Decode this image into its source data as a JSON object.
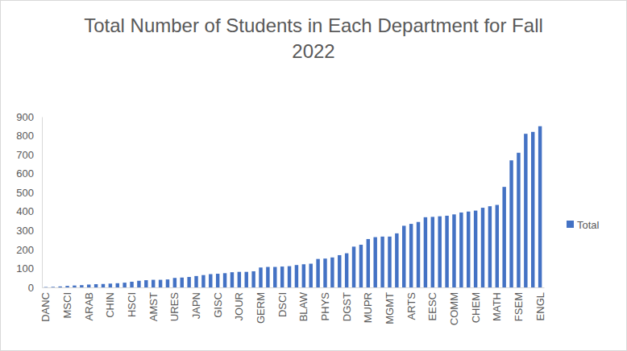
{
  "chart_data": {
    "type": "bar",
    "title": "Total Number of Students in Each Department for Fall 2022",
    "categories": [
      "DANC",
      null,
      null,
      "MSCI",
      null,
      null,
      "ARAB",
      null,
      null,
      "CHIN",
      null,
      null,
      "HSCI",
      null,
      null,
      "AMST",
      null,
      null,
      "URES",
      null,
      null,
      "JAPN",
      null,
      null,
      "GISC",
      null,
      null,
      "JOUR",
      null,
      null,
      "GERM",
      null,
      null,
      "DSCI",
      null,
      null,
      "BLAW",
      null,
      null,
      "PHYS",
      null,
      null,
      "DGST",
      null,
      null,
      "MUPR",
      null,
      null,
      "MGMT",
      null,
      null,
      "ARTS",
      null,
      null,
      "EESC",
      null,
      null,
      "COMM",
      null,
      null,
      "CHEM",
      null,
      null,
      "MATH",
      null,
      null,
      "FSEM",
      null,
      null,
      "ENGL"
    ],
    "series": [
      {
        "name": "Total",
        "color": "#4472c4",
        "values": [
          2,
          3,
          5,
          8,
          10,
          12,
          15,
          17,
          18,
          20,
          22,
          25,
          30,
          35,
          38,
          40,
          40,
          42,
          50,
          52,
          55,
          60,
          65,
          70,
          72,
          75,
          80,
          82,
          82,
          85,
          105,
          108,
          108,
          110,
          112,
          118,
          122,
          125,
          150,
          152,
          158,
          170,
          180,
          215,
          225,
          255,
          265,
          268,
          268,
          285,
          325,
          335,
          345,
          370,
          372,
          375,
          378,
          385,
          395,
          400,
          405,
          420,
          428,
          435,
          530,
          670,
          710,
          810,
          820,
          850
        ]
      }
    ],
    "ylim": [
      0,
      900
    ],
    "yticks": [
      0,
      100,
      200,
      300,
      400,
      500,
      600,
      700,
      800,
      900
    ],
    "grid": false,
    "legend": "right"
  }
}
